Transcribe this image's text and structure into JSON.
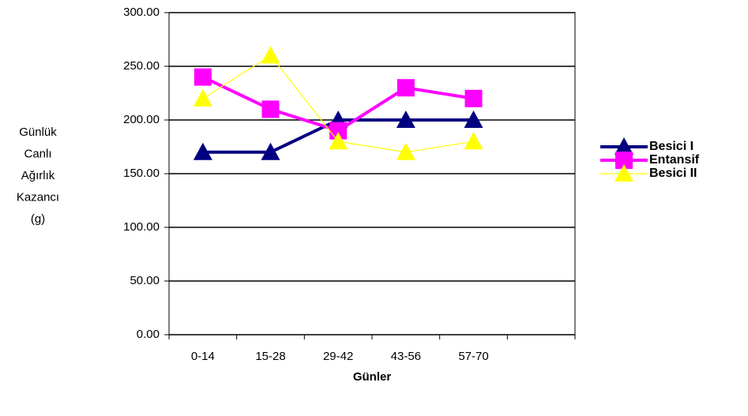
{
  "chart_data": {
    "type": "line",
    "categories": [
      "0-14",
      "15-28",
      "29-42",
      "43-56",
      "57-70",
      null
    ],
    "series": [
      {
        "name": "Besici I",
        "color": "#000080",
        "marker": "triangle",
        "values": [
          170,
          170,
          200,
          200,
          200,
          null
        ]
      },
      {
        "name": "Entansif",
        "color": "#ff00ff",
        "marker": "square",
        "values": [
          240,
          210,
          190,
          230,
          220,
          null
        ]
      },
      {
        "name": "Besici II",
        "color": "#ffff00",
        "marker": "triangle",
        "values": [
          220,
          260,
          180,
          170,
          180,
          null
        ]
      }
    ],
    "ylim": [
      0,
      300
    ],
    "yticks": [
      {
        "value": 0,
        "label": "0.00"
      },
      {
        "value": 50,
        "label": "50.00"
      },
      {
        "value": 100,
        "label": "100.00"
      },
      {
        "value": 150,
        "label": "150.00"
      },
      {
        "value": 200,
        "label": "200.00"
      },
      {
        "value": 250,
        "label": "250.00"
      },
      {
        "value": 300,
        "label": "300.00"
      }
    ],
    "ylabel": [
      "Günlük",
      "Canlı",
      "Ağırlık",
      "Kazancı",
      "(g)"
    ],
    "xlabel": "Günler",
    "grid": true,
    "legend": "right"
  }
}
